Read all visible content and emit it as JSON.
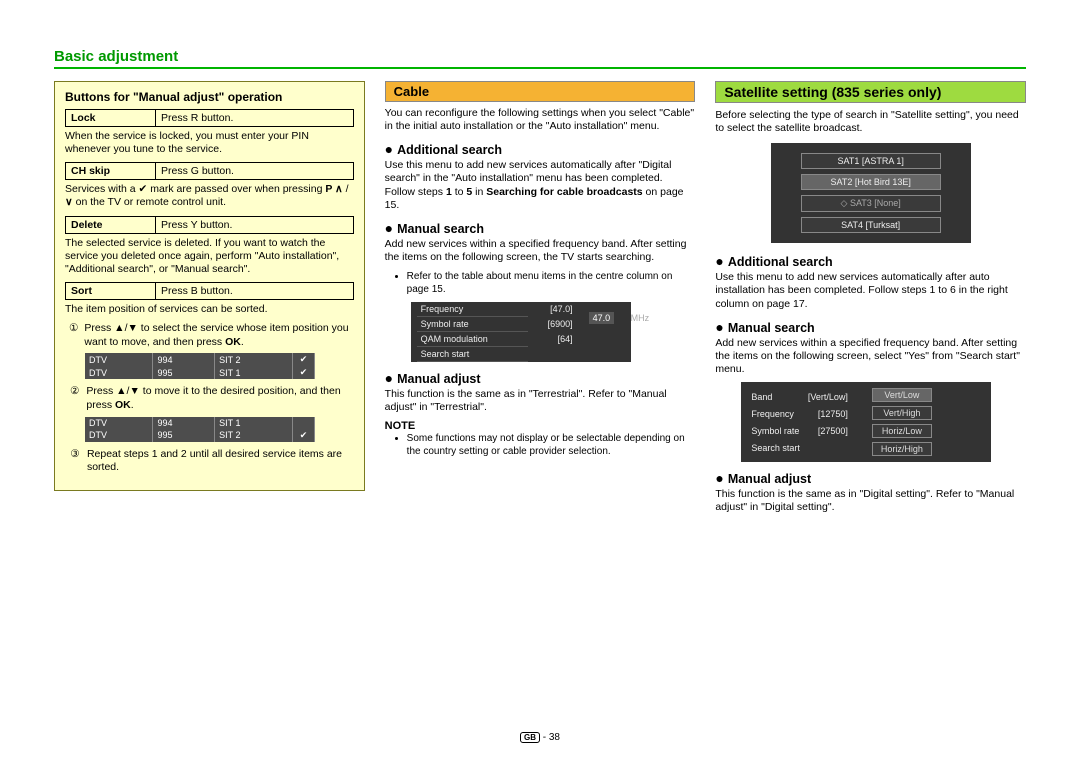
{
  "page": {
    "title": "Basic adjustment",
    "footer_gb": "GB",
    "footer_page": "- 38"
  },
  "col1": {
    "box_title": "Buttons for \"Manual adjust\" operation",
    "rows": [
      {
        "k": "Lock",
        "v": "Press R button.",
        "desc": "When the service is locked, you must enter your PIN whenever you tune to the service."
      },
      {
        "k": "CH skip",
        "v": "Press G button.",
        "desc": "Services with a ✔ mark are passed over when pressing P ∧ / ∨ on the TV or remote control unit."
      },
      {
        "k": "Delete",
        "v": "Press Y button.",
        "desc": "The selected service is deleted. If you want to watch the service you deleted once again, perform \"Auto installation\", \"Additional search\", or \"Manual search\"."
      },
      {
        "k": "Sort",
        "v": "Press B button.",
        "desc": "The item position of services can be sorted."
      }
    ],
    "steps": [
      "Press ▲/▼ to select the service whose item position you want to move, and then press OK.",
      "Press ▲/▼ to move it to the desired position, and then press OK.",
      "Repeat steps 1 and 2 until all desired service items are sorted."
    ],
    "svc1": [
      [
        "DTV",
        "994",
        "SIT 2",
        "✔"
      ],
      [
        "DTV",
        "995",
        "SIT 1",
        "✔"
      ]
    ],
    "svc2": [
      [
        "DTV",
        "994",
        "SIT 1",
        ""
      ],
      [
        "DTV",
        "995",
        "SIT 2",
        "✔"
      ]
    ]
  },
  "col2": {
    "head": "Cable",
    "intro": "You can reconfigure the following settings when you select \"Cable\" in the initial auto installation or the \"Auto installation\" menu.",
    "s1": "Additional search",
    "s1t": "Use this menu to add new services automatically after \"Digital search\" in the \"Auto installation\" menu has been completed. Follow steps 1 to 5 in Searching for cable broadcasts on page 15.",
    "s2": "Manual search",
    "s2t": "Add new services within a specified frequency band. After setting the items on the following screen, the TV starts searching.",
    "s2b": "Refer to the table about menu items in the centre column on page 15.",
    "osd": {
      "rows": [
        [
          "Frequency",
          "[47.0]"
        ],
        [
          "Symbol rate",
          "[6900]"
        ],
        [
          "QAM modulation",
          "[64]"
        ],
        [
          "Search start",
          ""
        ]
      ],
      "popup": "47.0",
      "unit": "MHz"
    },
    "s3": "Manual adjust",
    "s3t": "This function is the same as in \"Terrestrial\". Refer to \"Manual adjust\" in \"Terrestrial\".",
    "note": "NOTE",
    "note1": "Some functions may not display or be selectable depending on the country setting or cable provider selection."
  },
  "col3": {
    "head": "Satellite setting (835 series only)",
    "intro": "Before selecting the type of search in \"Satellite setting\", you need to select the satellite broadcast.",
    "sats": [
      "SAT1 [ASTRA 1]",
      "SAT2 [Hot Bird 13E]",
      "◇ SAT3 [None]",
      "SAT4 [Turksat]"
    ],
    "s1": "Additional search",
    "s1t": "Use this menu to add new services automatically after auto installation has been completed. Follow steps 1 to 6 in the right column on page 17.",
    "s2": "Manual search",
    "s2t": "Add new services within a specified frequency band. After setting the items on the following screen, select \"Yes\" from \"Search start\" menu.",
    "osd": {
      "rows": [
        [
          "Band",
          "[Vert/Low]"
        ],
        [
          "Frequency",
          "[12750]"
        ],
        [
          "Symbol rate",
          "[27500]"
        ],
        [
          "Search start",
          ""
        ]
      ],
      "opts": [
        "Vert/Low",
        "Vert/High",
        "Horiz/Low",
        "Horiz/High"
      ]
    },
    "s3": "Manual adjust",
    "s3t": "This function is the same as in \"Digital setting\". Refer to \"Manual adjust\" in \"Digital setting\"."
  }
}
